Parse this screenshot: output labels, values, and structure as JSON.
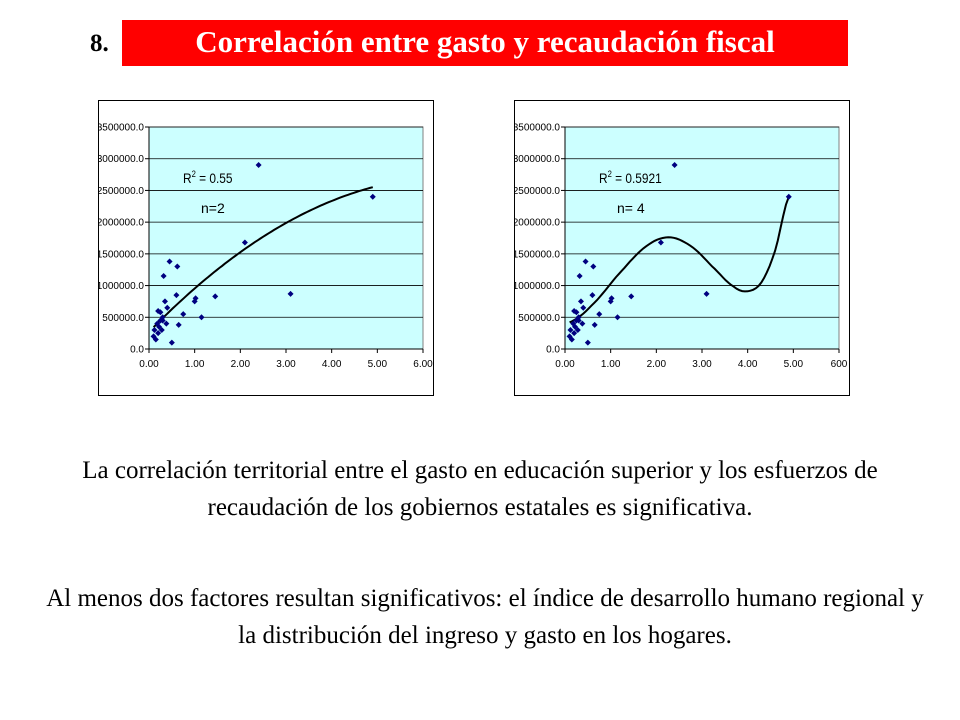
{
  "slide": {
    "number": "8.",
    "title": "Correlación entre gasto y recaudación fiscal"
  },
  "colors": {
    "title_bg": "#ff0000",
    "title_text": "#ffffff",
    "plot_bg": "#ccffff",
    "marker": "#000080",
    "grid": "#000000"
  },
  "chart_data": [
    {
      "type": "scatter",
      "title": "",
      "xlabel": "",
      "ylabel": "",
      "xlim": [
        0,
        6
      ],
      "ylim": [
        0,
        3500000
      ],
      "x_ticks": [
        "0.00",
        "1.00",
        "2.00",
        "3.00",
        "4.00",
        "5.00",
        "6.00"
      ],
      "y_ticks": [
        "0.0",
        "500000.0",
        "1000000.0",
        "1500000.0",
        "2000000.0",
        "2500000.0",
        "3000000.0",
        "3500000.0"
      ],
      "grid": "horizontal",
      "annotations": [
        "R",
        "2",
        " = 0.55",
        "n=2"
      ],
      "trendline": {
        "type": "polynomial",
        "order": 2,
        "coefficients": [
          270000,
          740000,
          -56000
        ],
        "x_range": [
          0.1,
          4.9
        ]
      },
      "points": [
        [
          0.1,
          200000
        ],
        [
          0.12,
          300000
        ],
        [
          0.15,
          150000
        ],
        [
          0.18,
          400000
        ],
        [
          0.2,
          600000
        ],
        [
          0.22,
          350000
        ],
        [
          0.25,
          450000
        ],
        [
          0.28,
          300000
        ],
        [
          0.3,
          500000
        ],
        [
          0.32,
          1150000
        ],
        [
          0.35,
          750000
        ],
        [
          0.38,
          400000
        ],
        [
          0.4,
          650000
        ],
        [
          0.45,
          1380000
        ],
        [
          0.5,
          100000
        ],
        [
          0.6,
          850000
        ],
        [
          0.62,
          1300000
        ],
        [
          0.65,
          380000
        ],
        [
          0.75,
          550000
        ],
        [
          1.0,
          750000
        ],
        [
          1.02,
          800000
        ],
        [
          1.15,
          500000
        ],
        [
          1.45,
          830000
        ],
        [
          2.1,
          1680000
        ],
        [
          2.4,
          2900000
        ],
        [
          3.1,
          870000
        ],
        [
          4.9,
          2400000
        ],
        [
          0.2,
          250000
        ],
        [
          0.25,
          580000
        ],
        [
          0.3,
          450000
        ]
      ]
    },
    {
      "type": "scatter",
      "title": "",
      "xlabel": "",
      "ylabel": "",
      "xlim": [
        0,
        6
      ],
      "ylim": [
        0,
        3500000
      ],
      "x_ticks": [
        "0.00",
        "1.00",
        "2.00",
        "3.00",
        "4.00",
        "5.00",
        "600"
      ],
      "y_ticks": [
        "0.0",
        "500000.0",
        "1000000.0",
        "1500000.0",
        "2000000.0",
        "2500000.0",
        "3000000.0",
        "3500000.0"
      ],
      "grid": "horizontal",
      "annotations": [
        "R",
        "2",
        " = 0.5921",
        "n= 4"
      ],
      "trendline": {
        "type": "polynomial",
        "order": 4,
        "x_range": [
          0.1,
          4.9
        ]
      },
      "points": [
        [
          0.1,
          200000
        ],
        [
          0.12,
          300000
        ],
        [
          0.15,
          150000
        ],
        [
          0.18,
          400000
        ],
        [
          0.2,
          600000
        ],
        [
          0.22,
          350000
        ],
        [
          0.25,
          450000
        ],
        [
          0.28,
          300000
        ],
        [
          0.3,
          500000
        ],
        [
          0.32,
          1150000
        ],
        [
          0.35,
          750000
        ],
        [
          0.38,
          400000
        ],
        [
          0.4,
          650000
        ],
        [
          0.45,
          1380000
        ],
        [
          0.5,
          100000
        ],
        [
          0.6,
          850000
        ],
        [
          0.62,
          1300000
        ],
        [
          0.65,
          380000
        ],
        [
          0.75,
          550000
        ],
        [
          1.0,
          750000
        ],
        [
          1.02,
          800000
        ],
        [
          1.15,
          500000
        ],
        [
          1.45,
          830000
        ],
        [
          2.1,
          1680000
        ],
        [
          2.4,
          2900000
        ],
        [
          3.1,
          870000
        ],
        [
          4.9,
          2400000
        ],
        [
          0.2,
          250000
        ],
        [
          0.25,
          580000
        ],
        [
          0.3,
          450000
        ]
      ]
    }
  ],
  "text": {
    "paragraph1": "La correlación territorial entre el gasto en educación superior y los esfuerzos de recaudación de los gobiernos estatales es significativa.",
    "paragraph2": "Al menos dos factores resultan significativos: el índice de desarrollo humano regional y la distribución del ingreso y gasto en los hogares."
  }
}
